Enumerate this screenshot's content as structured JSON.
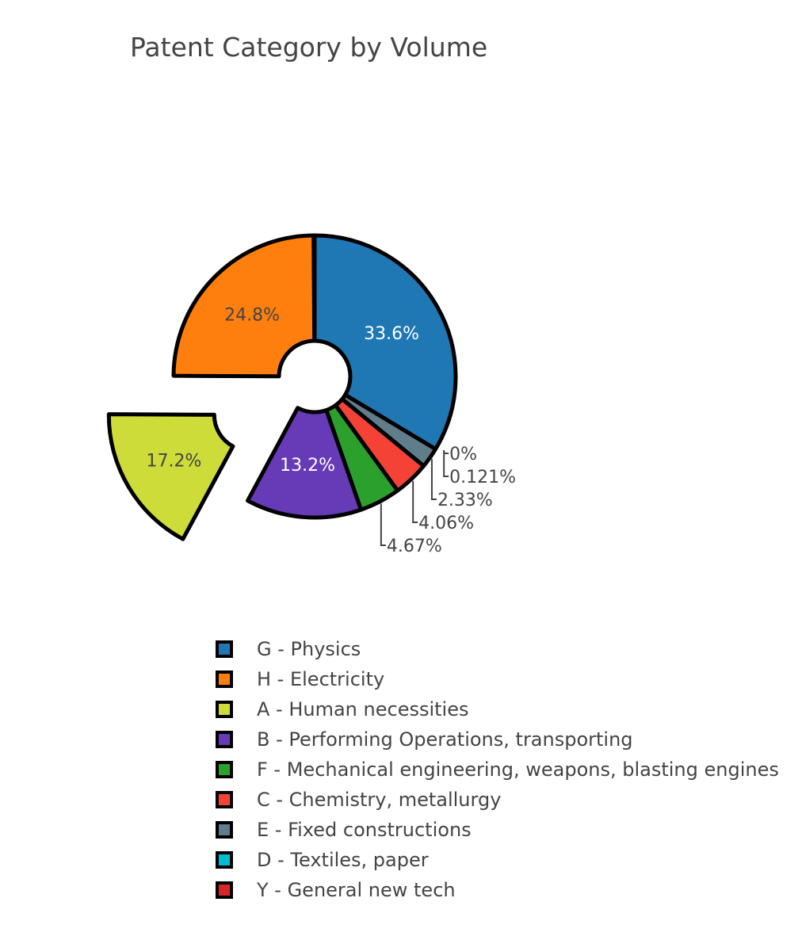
{
  "chart_data": {
    "type": "pie",
    "title": "Patent Category by Volume",
    "hole": true,
    "slices": [
      {
        "label": "G - Physics",
        "value": 33.6,
        "text": "33.6%",
        "color": "#1f77b4",
        "text_color": "#ffffff",
        "text_position": "inside",
        "pulled": false
      },
      {
        "label": "E - Fixed constructions",
        "value": 2.33,
        "text": "2.33%",
        "color": "#607d8b",
        "text_color": "#444444",
        "text_position": "outside",
        "pulled": false
      },
      {
        "label": "C - Chemistry, metallurgy",
        "value": 4.06,
        "text": "4.06%",
        "color": "#f44336",
        "text_color": "#444444",
        "text_position": "outside",
        "pulled": false
      },
      {
        "label": "F - Mechanical engineering, weapons, blasting engines",
        "value": 4.67,
        "text": "4.67%",
        "color": "#2ca02c",
        "text_color": "#444444",
        "text_position": "outside",
        "pulled": false
      },
      {
        "label": "B - Performing Operations, transporting",
        "value": 13.2,
        "text": "13.2%",
        "color": "#673ab7",
        "text_color": "#ffffff",
        "text_position": "inside",
        "pulled": false
      },
      {
        "label": "A - Human necessities",
        "value": 17.2,
        "text": "17.2%",
        "color": "#cddc39",
        "text_color": "#444444",
        "text_position": "inside",
        "pulled": true
      },
      {
        "label": "H - Electricity",
        "value": 24.8,
        "text": "24.8%",
        "color": "#ff7f0e",
        "text_color": "#444444",
        "text_position": "inside",
        "pulled": false
      }
    ],
    "small_slices": [
      {
        "label": "D - Textiles, paper",
        "value": 0.121,
        "text": "0.121%"
      },
      {
        "label": "Y - General new tech",
        "value": 0,
        "text": "0%"
      }
    ],
    "legend_position": "bottom",
    "legend": [
      {
        "label": "G - Physics",
        "color": "#1f77b4"
      },
      {
        "label": "H - Electricity",
        "color": "#ff7f0e"
      },
      {
        "label": "A - Human necessities",
        "color": "#cddc39"
      },
      {
        "label": "B - Performing Operations, transporting",
        "color": "#673ab7"
      },
      {
        "label": "F - Mechanical engineering, weapons, blasting engines",
        "color": "#2ca02c"
      },
      {
        "label": "C - Chemistry, metallurgy",
        "color": "#f44336"
      },
      {
        "label": "E - Fixed constructions",
        "color": "#607d8b"
      },
      {
        "label": "D - Textiles, paper",
        "color": "#00bcd4"
      },
      {
        "label": "Y - General new tech",
        "color": "#d62728"
      }
    ]
  }
}
